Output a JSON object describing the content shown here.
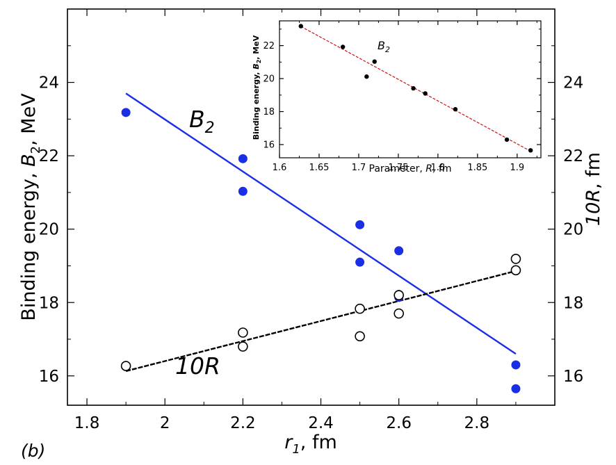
{
  "panel_label": "(b)",
  "colors": {
    "blue": "#1a2ee6",
    "black": "#000000",
    "red": "#cc1111"
  },
  "chart_data": [
    {
      "type": "scatter",
      "title": "",
      "xlabel": {
        "italic": "r",
        "sub": "1",
        "rest": ", fm"
      },
      "ylabel": {
        "pre": "Binding energy, ",
        "italic": "B",
        "sub": "2",
        "rest": ", MeV"
      },
      "ylabel_right": {
        "italic": "10R",
        "rest": ", fm"
      },
      "xlim": [
        1.75,
        3.0
      ],
      "ylim": [
        15.2,
        26.0
      ],
      "x_ticks": [
        1.8,
        2.0,
        2.2,
        2.4,
        2.6,
        2.8
      ],
      "x_tick_labels": [
        "1.8",
        "2",
        "2.2",
        "2.4",
        "2.6",
        "2.8"
      ],
      "y_ticks": [
        16,
        18,
        20,
        22,
        24
      ],
      "y_tick_labels": [
        "16",
        "18",
        "20",
        "22",
        "24"
      ],
      "series": [
        {
          "name": "B2",
          "label_italic": "B",
          "label_sub": "2",
          "marker": "filled-circle",
          "color": "#1a2ee6",
          "points": [
            [
              1.9,
              23.18
            ],
            [
              2.2,
              21.92
            ],
            [
              2.2,
              21.03
            ],
            [
              2.5,
              20.12
            ],
            [
              2.5,
              19.1
            ],
            [
              2.6,
              19.41
            ],
            [
              2.6,
              18.22
            ],
            [
              2.6,
              18.14
            ],
            [
              2.9,
              16.3
            ],
            [
              2.9,
              15.65
            ]
          ],
          "fit": [
            [
              1.9,
              23.7
            ],
            [
              2.9,
              16.6
            ]
          ]
        },
        {
          "name": "10R",
          "label_italic": "10R",
          "marker": "open-circle",
          "color": "#000000",
          "points": [
            [
              1.9,
              16.27
            ],
            [
              2.2,
              17.18
            ],
            [
              2.2,
              16.8
            ],
            [
              2.5,
              17.83
            ],
            [
              2.5,
              17.08
            ],
            [
              2.6,
              18.2
            ],
            [
              2.6,
              17.7
            ],
            [
              2.9,
              19.19
            ],
            [
              2.9,
              18.88
            ]
          ],
          "fit": [
            [
              1.9,
              16.13
            ],
            [
              2.9,
              18.86
            ]
          ]
        }
      ]
    },
    {
      "type": "scatter",
      "title": "",
      "xlabel": {
        "pre": "Parameter, ",
        "italic": "R",
        "rest": ", fm"
      },
      "ylabel": {
        "pre": "Binding energy, ",
        "italic": "B",
        "sub": "2",
        "rest": ", MeV"
      },
      "xlim": [
        1.6,
        1.93
      ],
      "ylim": [
        15.2,
        23.5
      ],
      "x_ticks": [
        1.6,
        1.65,
        1.7,
        1.75,
        1.8,
        1.85,
        1.9
      ],
      "x_tick_labels": [
        "1.6",
        "1.65",
        "1.7",
        "1.75",
        "1.8",
        "1.85",
        "1.9"
      ],
      "y_ticks": [
        16,
        18,
        20,
        22
      ],
      "y_tick_labels": [
        "16",
        "18",
        "20",
        "22"
      ],
      "series": [
        {
          "name": "B2",
          "label_italic": "B",
          "label_sub": "2",
          "marker": "filled-dot",
          "color": "#000000",
          "points": [
            [
              1.627,
              23.18
            ],
            [
              1.68,
              21.92
            ],
            [
              1.71,
              20.12
            ],
            [
              1.72,
              21.03
            ],
            [
              1.769,
              19.41
            ],
            [
              1.784,
              19.1
            ],
            [
              1.822,
              18.14
            ],
            [
              1.887,
              16.3
            ],
            [
              1.917,
              15.65
            ]
          ],
          "fit": [
            [
              1.627,
              23.16
            ],
            [
              1.917,
              15.6
            ]
          ],
          "fit_color": "#cc1111"
        }
      ]
    }
  ]
}
